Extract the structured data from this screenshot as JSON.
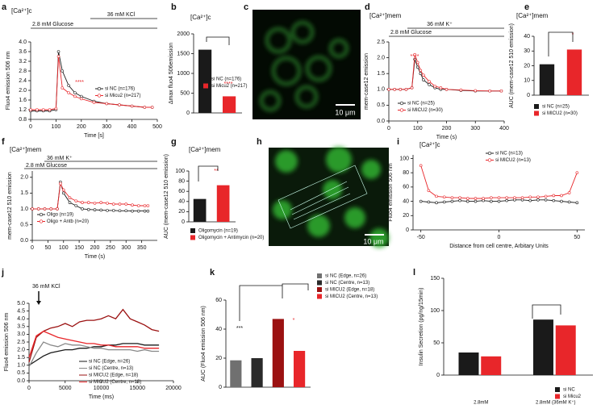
{
  "chart_data": [
    {
      "type": "line",
      "label": "a",
      "title": "[Ca²⁺]c",
      "xlabel": "Time [s]",
      "ylabel": "Fluo4 emission 506 nm",
      "annotations": [
        "36 mM KCl",
        "2.8 mM Glucose",
        "****"
      ],
      "markers": true,
      "x": [
        0,
        25,
        50,
        75,
        100,
        110,
        125,
        150,
        175,
        200,
        250,
        300,
        350,
        400,
        450,
        480
      ],
      "xlim": [
        0,
        500
      ],
      "xticks": [
        0,
        100,
        200,
        300,
        400,
        500
      ],
      "ylim": [
        0.8,
        4.0
      ],
      "yticks": [
        0.8,
        1.2,
        1.6,
        {
          "value": 2.0,
          "label": "2.0"
        },
        2.4,
        2.8,
        3.2,
        3.6,
        {
          "value": 4.0,
          "label": "4.0"
        }
      ],
      "series": [
        {
          "name": "si NC (n=176)",
          "color": "#1a1a1a",
          "values": [
            1.15,
            1.15,
            1.15,
            1.15,
            1.2,
            3.6,
            2.8,
            2.2,
            1.9,
            1.75,
            1.55,
            1.45,
            1.4,
            1.35,
            1.3,
            1.3
          ]
        },
        {
          "name": "si Micu2 (n=217)",
          "color": "#e8262a",
          "values": [
            1.2,
            1.2,
            1.2,
            1.2,
            1.25,
            3.4,
            2.1,
            1.9,
            1.75,
            1.65,
            1.5,
            1.45,
            1.4,
            1.35,
            1.3,
            1.3
          ]
        }
      ]
    },
    {
      "type": "bar",
      "label": "b",
      "title": "[Ca²⁺]c",
      "ylabel": "Δmax fluo4 506emission",
      "annotations": [
        "****"
      ],
      "categories": [
        null,
        null
      ],
      "ylim": [
        0,
        2000
      ],
      "yticks": [
        0,
        500,
        1000,
        1500,
        2000
      ],
      "series": [
        {
          "name": "si NC (n=176)",
          "color": "#1a1a1a",
          "values": [
            1600,
            null
          ]
        },
        {
          "name": "si Micu2 (n=217)",
          "color": "#e8262a",
          "values": [
            null,
            420
          ]
        }
      ]
    },
    {
      "type": "image",
      "label": "c",
      "scale_bar": "10 μm"
    },
    {
      "type": "line",
      "label": "d",
      "title": "[Ca²⁺]mem",
      "xlabel": "Time (s)",
      "ylabel": "mem-case12 emission",
      "annotations": [
        "36 mM K⁺",
        "2.8 mM Glucose",
        "****"
      ],
      "markers": true,
      "x": [
        0,
        20,
        40,
        60,
        80,
        90,
        100,
        110,
        120,
        140,
        160,
        180,
        200,
        250,
        300,
        350,
        390
      ],
      "xlim": [
        0,
        400
      ],
      "xticks": [
        0,
        100,
        200,
        300,
        400
      ],
      "ylim": [
        0,
        2.5
      ],
      "yticks": [
        {
          "value": 0,
          "label": "0.0"
        },
        0.5,
        {
          "value": 1,
          "label": "1.0"
        },
        1.5,
        {
          "value": 2,
          "label": "2.0"
        },
        2.5
      ],
      "series": [
        {
          "name": "si NC (n=25)",
          "color": "#1a1a1a",
          "values": [
            1.0,
            1.0,
            1.0,
            1.0,
            1.05,
            1.95,
            1.7,
            1.5,
            1.3,
            1.15,
            1.05,
            1.0,
            1.0,
            0.97,
            0.95,
            0.95,
            0.95
          ]
        },
        {
          "name": "si MICU2 (n=30)",
          "color": "#e8262a",
          "values": [
            1.0,
            1.0,
            1.0,
            1.0,
            1.05,
            2.1,
            1.85,
            1.6,
            1.45,
            1.25,
            1.1,
            1.05,
            1.0,
            0.98,
            0.96,
            0.95,
            0.95
          ]
        }
      ]
    },
    {
      "type": "bar",
      "label": "e",
      "title": "[Ca²⁺]mem",
      "ylabel": "AUC (mem-case12 510 emission)",
      "annotations": [
        "*"
      ],
      "categories": [
        null,
        null
      ],
      "ylim": [
        0,
        40
      ],
      "yticks": [
        0,
        10,
        20,
        30,
        40
      ],
      "series": [
        {
          "name": "si NC (n=25)",
          "color": "#1a1a1a",
          "values": [
            21,
            null
          ]
        },
        {
          "name": "si MICU2 (n=30)",
          "color": "#e8262a",
          "values": [
            null,
            31
          ]
        }
      ]
    },
    {
      "type": "line",
      "label": "f",
      "title": "[Ca²⁺]mem",
      "xlabel": "Time (s)",
      "ylabel": "mem-case12 510 emission",
      "annotations": [
        "36 mM K⁺",
        "2.8 mM Glucose"
      ],
      "markers": true,
      "x": [
        0,
        20,
        40,
        60,
        80,
        90,
        100,
        120,
        140,
        160,
        180,
        200,
        220,
        240,
        260,
        280,
        300,
        320,
        340,
        360,
        370
      ],
      "xlim": [
        0,
        400
      ],
      "xticks": [
        0,
        50,
        100,
        150,
        200,
        250,
        300,
        350
      ],
      "ylim": [
        0,
        2.2
      ],
      "yticks": [
        {
          "value": 0,
          "label": "0.0"
        },
        0.5,
        {
          "value": 1,
          "label": "1.0"
        },
        1.5,
        {
          "value": 2,
          "label": "2.0"
        }
      ],
      "series": [
        {
          "name": "Oligo (n=19)",
          "color": "#1a1a1a",
          "values": [
            1.0,
            1.0,
            1.0,
            1.0,
            1.0,
            1.85,
            1.5,
            1.2,
            1.1,
            1.0,
            0.98,
            0.97,
            0.96,
            0.95,
            0.95,
            0.94,
            0.94,
            0.93,
            0.93,
            0.93,
            0.93
          ]
        },
        {
          "name": "Oligo + Antb (n=20)",
          "color": "#e8262a",
          "values": [
            1.0,
            1.0,
            1.0,
            1.0,
            1.0,
            1.8,
            1.6,
            1.35,
            1.25,
            1.2,
            1.2,
            1.18,
            1.2,
            1.18,
            1.15,
            1.15,
            1.15,
            1.12,
            1.1,
            1.1,
            1.1
          ]
        }
      ]
    },
    {
      "type": "bar",
      "label": "g",
      "title": "[Ca²⁺]mem",
      "ylabel": "AUC (mem-case12 510 emission)",
      "annotations": [
        "**"
      ],
      "categories": [
        null,
        null
      ],
      "ylim": [
        0,
        100
      ],
      "yticks": [
        0,
        20,
        40,
        60,
        80,
        100
      ],
      "series": [
        {
          "name": "Oligomycin (n=19)",
          "color": "#1a1a1a",
          "values": [
            45,
            null
          ]
        },
        {
          "name": "Oligomycin + Antimycin (n=20)",
          "color": "#e8262a",
          "values": [
            null,
            72
          ]
        }
      ]
    },
    {
      "type": "image",
      "label": "h",
      "scale_bar": "10 μm"
    },
    {
      "type": "line",
      "label": "i",
      "title": "[Ca²⁺]c",
      "xlabel": "Distance from cell centre, Arbitary Units",
      "ylabel": "Fluo4 emission 506 nm",
      "annotations": [],
      "markers": true,
      "x": [
        -50,
        -45,
        -40,
        -35,
        -30,
        -25,
        -20,
        -15,
        -10,
        -5,
        0,
        5,
        10,
        15,
        20,
        25,
        30,
        35,
        40,
        45,
        50
      ],
      "xlim": [
        -55,
        55
      ],
      "xticks": [
        -50,
        0,
        50
      ],
      "ylim": [
        0,
        105
      ],
      "yticks": [
        0,
        20,
        40,
        60,
        80,
        100
      ],
      "series": [
        {
          "name": "si NC (n=13)",
          "color": "#1a1a1a",
          "values": [
            40,
            39,
            38,
            39,
            40,
            41,
            40,
            40,
            41,
            40,
            40,
            41,
            42,
            42,
            41,
            42,
            42,
            41,
            40,
            39,
            38
          ]
        },
        {
          "name": "si MICU2 (n=13)",
          "color": "#e8262a",
          "values": [
            90,
            55,
            47,
            46,
            45,
            45,
            44,
            44,
            44,
            45,
            45,
            45,
            45,
            45,
            46,
            46,
            47,
            48,
            48,
            52,
            80
          ]
        }
      ]
    },
    {
      "type": "line",
      "label": "j",
      "xlabel": "Time (ms)",
      "ylabel": "Fluo4 emission 506 nm",
      "annotations": [
        "36 mM KCl"
      ],
      "markers": false,
      "x": [
        0,
        1000,
        2000,
        3000,
        4000,
        5000,
        6000,
        7000,
        8000,
        9000,
        10000,
        11000,
        12000,
        13000,
        14000,
        15000,
        16000,
        17000,
        18000
      ],
      "xlim": [
        0,
        20000
      ],
      "xticks": [
        0,
        5000,
        10000,
        15000,
        20000
      ],
      "ylim": [
        0,
        5
      ],
      "yticks": [
        {
          "value": 0,
          "label": "0.0"
        },
        0.5,
        {
          "value": 1,
          "label": "1.0"
        },
        1.5,
        {
          "value": 2,
          "label": "2.0"
        },
        2.5,
        {
          "value": 3,
          "label": "3.0"
        },
        3.5,
        {
          "value": 4,
          "label": "4.0"
        },
        4.5,
        {
          "value": 5,
          "label": "5.0"
        }
      ],
      "series": [
        {
          "name": "si NC (Edge, n=26)",
          "color": "#1a1a1a",
          "values": [
            1.0,
            1.3,
            1.6,
            1.8,
            1.9,
            2.0,
            2.0,
            2.1,
            2.1,
            2.2,
            2.2,
            2.3,
            2.3,
            2.4,
            2.4,
            2.4,
            2.3,
            2.3,
            2.3
          ]
        },
        {
          "name": "si NC (Centre, n=13)",
          "color": "#888888",
          "values": [
            0.9,
            1.8,
            2.5,
            2.3,
            2.2,
            2.4,
            2.3,
            2.3,
            2.2,
            2.1,
            2.1,
            2.0,
            2.0,
            2.0,
            2.0,
            1.9,
            2.0,
            1.9,
            1.9
          ]
        },
        {
          "name": "si MICU2 (Edge, n=18)",
          "color": "#9b1111",
          "values": [
            1.2,
            2.8,
            3.2,
            3.4,
            3.5,
            3.7,
            3.5,
            3.8,
            3.9,
            3.9,
            4.0,
            4.2,
            4.0,
            4.6,
            4.0,
            3.8,
            3.6,
            3.3,
            3.2
          ]
        },
        {
          "name": "si MICU2 (Centre, n=13)",
          "color": "#e8262a",
          "values": [
            1.5,
            2.9,
            3.2,
            3.0,
            2.8,
            2.7,
            2.6,
            2.5,
            2.4,
            2.4,
            2.3,
            2.3,
            2.2,
            2.2,
            2.2,
            2.2,
            2.1,
            2.1,
            2.1
          ]
        }
      ]
    },
    {
      "type": "bar",
      "label": "k",
      "ylabel": "AUC (Fluo4 emission 506 nm)",
      "annotations": [
        "***",
        "*"
      ],
      "categories": [
        null,
        null,
        null,
        null
      ],
      "ylim": [
        0,
        60
      ],
      "yticks": [
        0,
        20,
        40,
        60
      ],
      "series": [
        {
          "name": "si NC (Edge, n=26)",
          "color": "#707070",
          "values": [
            18.5,
            null,
            null,
            null
          ]
        },
        {
          "name": "si NC (Centre, n=13)",
          "color": "#2a2a2a",
          "values": [
            null,
            20,
            null,
            null
          ]
        },
        {
          "name": "si MICU2 (Edge, n=18)",
          "color": "#9b1111",
          "values": [
            null,
            null,
            47,
            null
          ]
        },
        {
          "name": "si MICU2 (Centre, n=13)",
          "color": "#e8262a",
          "values": [
            null,
            null,
            null,
            25
          ]
        }
      ]
    },
    {
      "type": "bar",
      "label": "l",
      "ylabel": "Insulin Secretion (pg/ng/15min)",
      "annotations": [],
      "categories": [
        "2.8mM",
        "2.8mM (36mM K⁺)"
      ],
      "ylim": [
        0,
        150
      ],
      "yticks": [
        0,
        50,
        100,
        150
      ],
      "series": [
        {
          "name": "si NC",
          "color": "#1a1a1a",
          "values": [
            35,
            86
          ]
        },
        {
          "name": "si Micu2",
          "color": "#e8262a",
          "values": [
            29,
            77
          ]
        }
      ]
    }
  ]
}
